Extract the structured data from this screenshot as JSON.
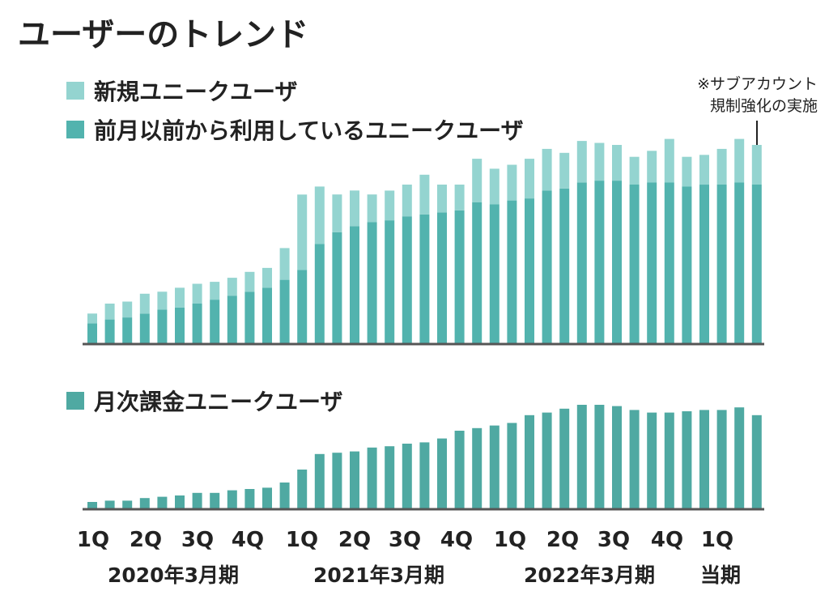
{
  "title": "ユーザーのトレンド",
  "colors": {
    "new_users": "#94d4d0",
    "existing_users": "#52b3ae",
    "paying_users": "#4fa9a2",
    "axis": "#555555",
    "text": "#222222"
  },
  "chart_data": [
    {
      "type": "bar",
      "stacked": true,
      "panel": "top",
      "legend": [
        {
          "name": "新規ユニークユーザ",
          "color": "#94d4d0"
        },
        {
          "name": "前月以前から利用しているユニークユーザ",
          "color": "#52b3ae"
        }
      ],
      "annotation": {
        "lines": [
          "※サブアカウント",
          "規制強化の実施"
        ],
        "target_index": 38
      },
      "axis_range": [
        0,
        100
      ],
      "series": [
        {
          "name": "前月以前から利用しているユニークユーザ",
          "values": [
            10,
            12,
            13,
            15,
            17,
            18,
            20,
            22,
            24,
            26,
            28,
            32,
            37,
            50,
            56,
            59,
            61,
            62,
            64,
            65,
            66,
            67,
            71,
            70,
            72,
            73,
            77,
            78,
            81,
            82,
            82,
            80,
            81,
            81,
            79,
            80,
            80,
            81,
            80
          ]
        },
        {
          "name": "新規ユニークユーザ",
          "values": [
            5,
            8,
            8,
            10,
            9,
            10,
            10,
            9,
            9,
            10,
            10,
            16,
            38,
            29,
            19,
            18,
            14,
            15,
            16,
            20,
            14,
            13,
            22,
            18,
            18,
            20,
            21,
            18,
            21,
            19,
            18,
            14,
            16,
            22,
            15,
            15,
            18,
            22,
            20
          ]
        }
      ]
    },
    {
      "type": "bar",
      "panel": "bottom",
      "legend": [
        {
          "name": "月次課金ユニークユーザ",
          "color": "#4fa9a2"
        }
      ],
      "axis_range": [
        0,
        100
      ],
      "series": [
        {
          "name": "月次課金ユニークユーザ",
          "values": [
            5,
            6,
            6,
            8,
            9,
            10,
            12,
            12,
            14,
            15,
            16,
            20,
            30,
            42,
            43,
            44,
            47,
            48,
            50,
            51,
            54,
            60,
            62,
            64,
            66,
            72,
            74,
            77,
            80,
            80,
            79,
            76,
            74,
            74,
            75,
            76,
            76,
            78,
            72
          ]
        }
      ],
      "x_tick_labels": [
        "1Q",
        "2Q",
        "3Q",
        "4Q",
        "1Q",
        "2Q",
        "3Q",
        "4Q",
        "1Q",
        "2Q",
        "3Q",
        "4Q",
        "1Q"
      ],
      "fiscal_year_labels": [
        "2020年3月期",
        "2021年3月期",
        "2022年3月期",
        "当期"
      ]
    }
  ]
}
